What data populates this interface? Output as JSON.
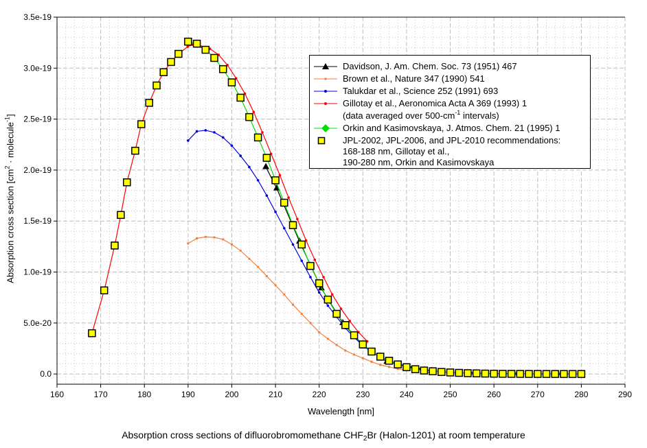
{
  "chart_data": {
    "type": "line",
    "title": "",
    "caption": {
      "pre": "Absorption cross sections of difluorobromomethane CHF",
      "sub": "2",
      "post": "Br (Halon-1201) at room temperature"
    },
    "xlabel": "Wavelength [nm]",
    "ylabel": {
      "pre": "Absorption cross section [cm",
      "sup1": "2",
      "mid": " · molecule",
      "sup2": "-1",
      "post": "]"
    },
    "xlim": [
      160,
      290
    ],
    "ylim": [
      -1e-20,
      3.5e-19
    ],
    "xticks": [
      160,
      170,
      180,
      190,
      200,
      210,
      220,
      230,
      240,
      250,
      260,
      270,
      280,
      290
    ],
    "yticks": [
      0,
      5e-20,
      1e-19,
      1.5e-19,
      2e-19,
      2.5e-19,
      3e-19,
      3.5e-19
    ],
    "ytick_labels": [
      "0.0",
      "5.0e-20",
      "1.0e-19",
      "1.5e-19",
      "2.0e-19",
      "2.5e-19",
      "3.0e-19",
      "3.5e-19"
    ],
    "grid": true,
    "legend_placement": "top-right",
    "series": [
      {
        "name": "Davidson, J. Am. Chem. Soc. 73 (1951) 467",
        "color": "#000000",
        "marker": "triangle",
        "x": [
          207.8,
          210.3,
          215.5,
          220.5,
          225.4,
          230.3,
          235.5,
          245.7
        ],
        "y": [
          2.03e-19,
          1.82e-19,
          1.3e-19,
          8.4e-20,
          5e-20,
          2.7e-20,
          1.2e-20,
          3e-21
        ]
      },
      {
        "name": "Brown et al., Nature 347 (1990) 541",
        "color": "#f08040",
        "marker": "small-square",
        "x": [
          190,
          192,
          194,
          196,
          198,
          200,
          202,
          204,
          206,
          208,
          210,
          212,
          214,
          216,
          218,
          220,
          222,
          224,
          226,
          228,
          230,
          232,
          234,
          236,
          238,
          240
        ],
        "y": [
          1.28e-19,
          1.33e-19,
          1.345e-19,
          1.34e-19,
          1.32e-19,
          1.27e-19,
          1.21e-19,
          1.13e-19,
          1.05e-19,
          9.6e-20,
          8.7e-20,
          7.8e-20,
          6.8e-20,
          5.9e-20,
          5e-20,
          4.1e-20,
          3.45e-20,
          2.85e-20,
          2.3e-20,
          1.9e-20,
          1.55e-20,
          1.2e-20,
          9e-21,
          7e-21,
          5e-21,
          3.5e-21
        ]
      },
      {
        "name": "Talukdar et al., Science 252 (1991) 693",
        "color": "#0000e0",
        "marker": "small-dot",
        "x": [
          190,
          192,
          194,
          196,
          198,
          200,
          202,
          204,
          206,
          208,
          210,
          212,
          214,
          216,
          218,
          220,
          222,
          224,
          226,
          228,
          230,
          232,
          234,
          236,
          238,
          240,
          242,
          244,
          246,
          248,
          250,
          255,
          260,
          265,
          270,
          275,
          280
        ],
        "y": [
          2.29e-19,
          2.38e-19,
          2.39e-19,
          2.37e-19,
          2.32e-19,
          2.24e-19,
          2.14e-19,
          2.03e-19,
          1.9e-19,
          1.75e-19,
          1.59e-19,
          1.43e-19,
          1.27e-19,
          1.11e-19,
          9.5e-20,
          8e-20,
          6.7e-20,
          5.6e-20,
          4.5e-20,
          3.6e-20,
          2.8e-20,
          2.15e-20,
          1.7e-20,
          1.3e-20,
          1e-20,
          7.5e-21,
          5.5e-21,
          4e-21,
          3e-21,
          2.2e-21,
          1.6e-21,
          8e-22,
          4e-22,
          2e-22,
          1e-22,
          1e-22,
          0
        ]
      },
      {
        "name": "Gillotay et al., Aeronomica Acta A 369 (1993) 1",
        "name2": {
          "pre": "(data averaged over 500-cm",
          "sup": "-1",
          "post": " intervals)"
        },
        "color": "#ff0000",
        "marker": "small-dot",
        "x": [
          168,
          170.8,
          173.2,
          174.6,
          176,
          177.9,
          179.3,
          181.1,
          182.8,
          184.4,
          186.1,
          187.8,
          189.9,
          191,
          193,
          195,
          197,
          199,
          201,
          203,
          205,
          207,
          209,
          211,
          213,
          215,
          217,
          219,
          221,
          223,
          225,
          227,
          229,
          231
        ],
        "y": [
          4e-20,
          8.2e-20,
          1.26e-19,
          1.56e-19,
          1.88e-19,
          2.19e-19,
          2.45e-19,
          2.66e-19,
          2.83e-19,
          2.96e-19,
          3.06e-19,
          3.14e-19,
          3.21e-19,
          3.23e-19,
          3.21e-19,
          3.19e-19,
          3.13e-19,
          3.03e-19,
          2.9e-19,
          2.75e-19,
          2.57e-19,
          2.37e-19,
          2.16e-19,
          1.95e-19,
          1.73e-19,
          1.52e-19,
          1.31e-19,
          1.12e-19,
          9.5e-20,
          7.8e-20,
          6.4e-20,
          5.2e-20,
          4.1e-20,
          3.2e-20
        ]
      },
      {
        "name": "Orkin and Kasimovskaya, J. Atmos. Chem. 21 (1995) 1",
        "color": "#00e000",
        "marker": "diamond",
        "x": [
          190,
          192,
          194,
          196,
          198,
          200,
          202,
          204,
          206,
          208,
          210,
          212,
          214,
          216,
          218,
          220,
          222,
          224,
          226,
          228,
          230,
          232,
          234,
          236,
          238,
          240,
          242,
          244,
          246,
          248,
          250,
          252,
          254,
          256,
          258,
          260,
          262,
          264,
          266,
          268,
          270,
          272,
          274,
          276,
          278,
          280
        ],
        "y": [
          3.26e-19,
          3.24e-19,
          3.18e-19,
          3.1e-19,
          2.99e-19,
          2.86e-19,
          2.71e-19,
          2.52e-19,
          2.32e-19,
          2.12e-19,
          1.9e-19,
          1.68e-19,
          1.46e-19,
          1.27e-19,
          1.06e-19,
          8.9e-20,
          7.3e-20,
          5.9e-20,
          4.8e-20,
          3.8e-20,
          2.9e-20,
          2.2e-20,
          1.7e-20,
          1.3e-20,
          9.4e-21,
          6.7e-21,
          4.7e-21,
          3.4e-21,
          2.7e-21,
          2e-21,
          1.5e-21,
          1.1e-21,
          8e-22,
          6e-22,
          4e-22,
          3e-22,
          2e-22,
          1.5e-22,
          1e-22,
          8e-23,
          6e-23,
          5e-23,
          4e-23,
          3e-23,
          2e-23,
          2e-23
        ]
      },
      {
        "name": "JPL-2002, JPL-2006, and JPL-2010 recommendations:",
        "name_lines": [
          "168-188 nm, Gillotay et al.,",
          "190-280 nm, Orkin and Kasimovskaya"
        ],
        "color": "#ffff00",
        "marker": "square",
        "x": [
          168,
          170.8,
          173.2,
          174.6,
          176,
          177.9,
          179.3,
          181.1,
          182.8,
          184.4,
          186.1,
          187.8,
          190,
          192,
          194,
          196,
          198,
          200,
          202,
          204,
          206,
          208,
          210,
          212,
          214,
          216,
          218,
          220,
          222,
          224,
          226,
          228,
          230,
          232,
          234,
          236,
          238,
          240,
          242,
          244,
          246,
          248,
          250,
          252,
          254,
          256,
          258,
          260,
          262,
          264,
          266,
          268,
          270,
          272,
          274,
          276,
          278,
          280
        ],
        "y": [
          4e-20,
          8.2e-20,
          1.26e-19,
          1.56e-19,
          1.88e-19,
          2.19e-19,
          2.45e-19,
          2.66e-19,
          2.83e-19,
          2.96e-19,
          3.06e-19,
          3.14e-19,
          3.26e-19,
          3.24e-19,
          3.18e-19,
          3.1e-19,
          2.99e-19,
          2.86e-19,
          2.71e-19,
          2.52e-19,
          2.32e-19,
          2.12e-19,
          1.9e-19,
          1.68e-19,
          1.46e-19,
          1.27e-19,
          1.06e-19,
          8.9e-20,
          7.3e-20,
          5.9e-20,
          4.8e-20,
          3.8e-20,
          2.9e-20,
          2.2e-20,
          1.7e-20,
          1.3e-20,
          9.4e-21,
          6.7e-21,
          4.7e-21,
          3.4e-21,
          2.7e-21,
          2e-21,
          1.5e-21,
          1.1e-21,
          8e-22,
          6e-22,
          4e-22,
          3e-22,
          2e-22,
          1.5e-22,
          1e-22,
          8e-23,
          6e-23,
          5e-23,
          4e-23,
          3e-23,
          2e-23,
          2e-23
        ]
      }
    ]
  }
}
